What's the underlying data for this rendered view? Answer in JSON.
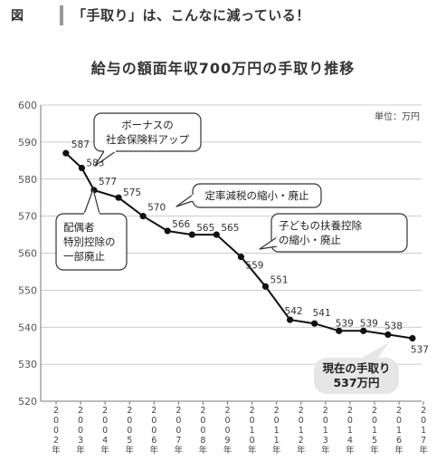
{
  "header": {
    "figure_label": "図",
    "headline": "「手取り」は、こんなに減っている！"
  },
  "chart_data": {
    "type": "line",
    "title": "給与の額面年収700万円の手取り推移",
    "unit_label": "単位：万円",
    "x": [
      "2002年",
      "2003年",
      "2004年",
      "2005年",
      "2006年",
      "2007年",
      "2008年",
      "2009年",
      "2010年",
      "2011年",
      "2012年",
      "2013年",
      "2014年",
      "2015年",
      "2016年",
      "2017年"
    ],
    "points": [
      {
        "x": "2002年",
        "y": 587
      },
      {
        "x": "2003年",
        "y": 583
      },
      {
        "x": "2003年",
        "y": 577
      },
      {
        "x": "2004年",
        "y": 575
      },
      {
        "x": "2005年",
        "y": 570
      },
      {
        "x": "2006年",
        "y": 566
      },
      {
        "x": "2007年",
        "y": 565
      },
      {
        "x": "2008年",
        "y": 565
      },
      {
        "x": "2009年",
        "y": 559
      },
      {
        "x": "2010年",
        "y": 551
      },
      {
        "x": "2011年",
        "y": 542
      },
      {
        "x": "2012年",
        "y": 541
      },
      {
        "x": "2013年",
        "y": 539
      },
      {
        "x": "2014年",
        "y": 539
      },
      {
        "x": "2015年",
        "y": 538
      },
      {
        "x": "2016年",
        "y": 537
      }
    ],
    "ylim": [
      520,
      600
    ],
    "yticks": [
      520,
      530,
      540,
      550,
      560,
      570,
      580,
      590,
      600
    ],
    "grid": true,
    "annotations": [
      {
        "text": "ボーナスの\n社会保険料アップ",
        "at": "2003年 (583)"
      },
      {
        "text": "配偶者\n特別控除の\n一部廃止",
        "at": "2003年 (577)"
      },
      {
        "text": "定率減税の縮小・廃止",
        "at": "2005年 (570)"
      },
      {
        "text": "子どもの扶養控除\nの縮小・廃止",
        "at": "2009年 (559)"
      },
      {
        "text": "現在の手取り\n537万円",
        "at": "2016年 (537)"
      }
    ],
    "colors": {
      "line": "#111111",
      "grid": "#bbbbbb",
      "callout_fill": "#e6e6e6"
    }
  }
}
